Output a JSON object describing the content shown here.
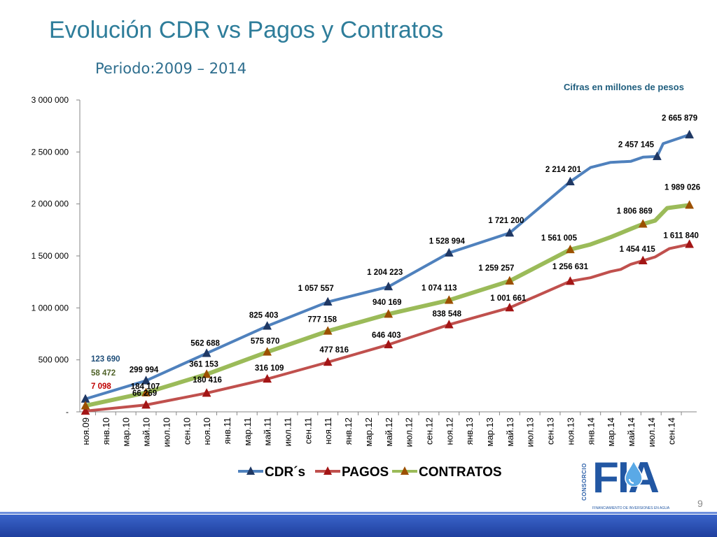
{
  "slide": {
    "title": "Evolución CDR vs Pagos y Contratos",
    "subtitle": "Periodo:2009 – 2014",
    "note": "Cifras en millones de pesos",
    "page_number": "9"
  },
  "logo": {
    "vertical_text": "CONSORCIO",
    "word": "FIA",
    "tagline": "FINANCIAMIENTO DE INVERSIONES EN AGUA"
  },
  "colors": {
    "cdr": "#4f81bd",
    "pagos": "#c0504d",
    "contratos": "#9bbb59",
    "cdr_marker": "#1f3864",
    "pagos_marker": "#a31515",
    "contratos_marker": "#9c5000",
    "cdr_label": "#1f4e79",
    "contratos_label": "#4f6228",
    "pagos_label": "#c00000",
    "title": "#2e7d9a"
  },
  "chart_data": {
    "type": "line",
    "ylim": [
      0,
      3000000
    ],
    "y_ticks": [
      "-",
      "500 000",
      "1 000 000",
      "1 500 000",
      "2 000 000",
      "2 500 000",
      "3 000 000"
    ],
    "y_tick_values": [
      0,
      500000,
      1000000,
      1500000,
      2000000,
      2500000,
      3000000
    ],
    "categories": [
      "ноя.09",
      "янв.10",
      "мар.10",
      "май.10",
      "июл.10",
      "сен.10",
      "ноя.10",
      "янв.11",
      "мар.11",
      "май.11",
      "июл.11",
      "сен.11",
      "ноя.11",
      "янв.12",
      "мар.12",
      "май.12",
      "июл.12",
      "сен.12",
      "ноя.12",
      "янв.13",
      "мар.13",
      "май.13",
      "июл.13",
      "сен.13",
      "ноя.13",
      "янв.14",
      "мар.14",
      "май.14",
      "июл.14",
      "сен.14"
    ],
    "legend_position": "bottom",
    "grid": false,
    "series": [
      {
        "name": "CDR´s",
        "key": "cdr",
        "points": [
          [
            0,
            123690
          ],
          [
            3,
            299994
          ],
          [
            6,
            562688
          ],
          [
            9,
            825403
          ],
          [
            12,
            1057557
          ],
          [
            15,
            1204223
          ],
          [
            18,
            1528994
          ],
          [
            21,
            1721200
          ],
          [
            24,
            2214201
          ],
          [
            25,
            2350000
          ],
          [
            26,
            2400000
          ],
          [
            27,
            2410000
          ],
          [
            27.6,
            2450000
          ],
          [
            28.3,
            2457145
          ],
          [
            28.6,
            2580000
          ],
          [
            29.2,
            2620000
          ],
          [
            29.9,
            2665879
          ]
        ],
        "marker_points": [
          [
            0,
            123690
          ],
          [
            3,
            299994
          ],
          [
            6,
            562688
          ],
          [
            9,
            825403
          ],
          [
            12,
            1057557
          ],
          [
            15,
            1204223
          ],
          [
            18,
            1528994
          ],
          [
            21,
            1721200
          ],
          [
            24,
            2214201
          ],
          [
            28.3,
            2457145
          ],
          [
            29.9,
            2665879
          ]
        ],
        "data_labels": [
          "123 690",
          "299 994",
          "562 688",
          "825 403",
          "1 057 557",
          "1 204 223",
          "1 528 994",
          "1 721 200",
          "2 214 201",
          "2 457 145",
          "2 665 879"
        ]
      },
      {
        "name": "PAGOS",
        "key": "pagos",
        "points": [
          [
            0,
            7098
          ],
          [
            3,
            66269
          ],
          [
            6,
            180416
          ],
          [
            9,
            316109
          ],
          [
            12,
            477816
          ],
          [
            15,
            646403
          ],
          [
            18,
            838548
          ],
          [
            21,
            1001661
          ],
          [
            24,
            1256631
          ],
          [
            25,
            1290000
          ],
          [
            26,
            1350000
          ],
          [
            26.5,
            1370000
          ],
          [
            27,
            1420000
          ],
          [
            27.6,
            1454415
          ],
          [
            28.2,
            1490000
          ],
          [
            28.9,
            1570000
          ],
          [
            29.9,
            1611840
          ]
        ],
        "marker_points": [
          [
            0,
            7098
          ],
          [
            3,
            66269
          ],
          [
            6,
            180416
          ],
          [
            9,
            316109
          ],
          [
            12,
            477816
          ],
          [
            15,
            646403
          ],
          [
            18,
            838548
          ],
          [
            21,
            1001661
          ],
          [
            24,
            1256631
          ],
          [
            27.6,
            1454415
          ],
          [
            29.9,
            1611840
          ]
        ],
        "data_labels": [
          "7 098",
          "66 269",
          "180 416",
          "316 109",
          "477 816",
          "646 403",
          "838 548",
          "1 001 661",
          "1 256 631",
          "1 454 415",
          "1 611 840"
        ]
      },
      {
        "name": "CONTRATOS",
        "key": "contratos",
        "points": [
          [
            0,
            58472
          ],
          [
            3,
            184107
          ],
          [
            6,
            361153
          ],
          [
            9,
            575870
          ],
          [
            12,
            777158
          ],
          [
            15,
            940169
          ],
          [
            18,
            1074113
          ],
          [
            21,
            1259257
          ],
          [
            24,
            1561005
          ],
          [
            25,
            1610000
          ],
          [
            26,
            1680000
          ],
          [
            27,
            1760000
          ],
          [
            27.6,
            1806869
          ],
          [
            28.2,
            1840000
          ],
          [
            28.8,
            1960000
          ],
          [
            29.9,
            1989026
          ]
        ],
        "marker_points": [
          [
            0,
            58472
          ],
          [
            3,
            184107
          ],
          [
            6,
            361153
          ],
          [
            9,
            575870
          ],
          [
            12,
            777158
          ],
          [
            15,
            940169
          ],
          [
            18,
            1074113
          ],
          [
            21,
            1259257
          ],
          [
            24,
            1561005
          ],
          [
            27.6,
            1806869
          ],
          [
            29.9,
            1989026
          ]
        ],
        "data_labels": [
          "58 472",
          "184 107",
          "361 153",
          "575 870",
          "777 158",
          "940 169",
          "1 074 113",
          "1 259 257",
          "1 561 005",
          "1 806 869",
          "1 989 026"
        ]
      }
    ]
  }
}
